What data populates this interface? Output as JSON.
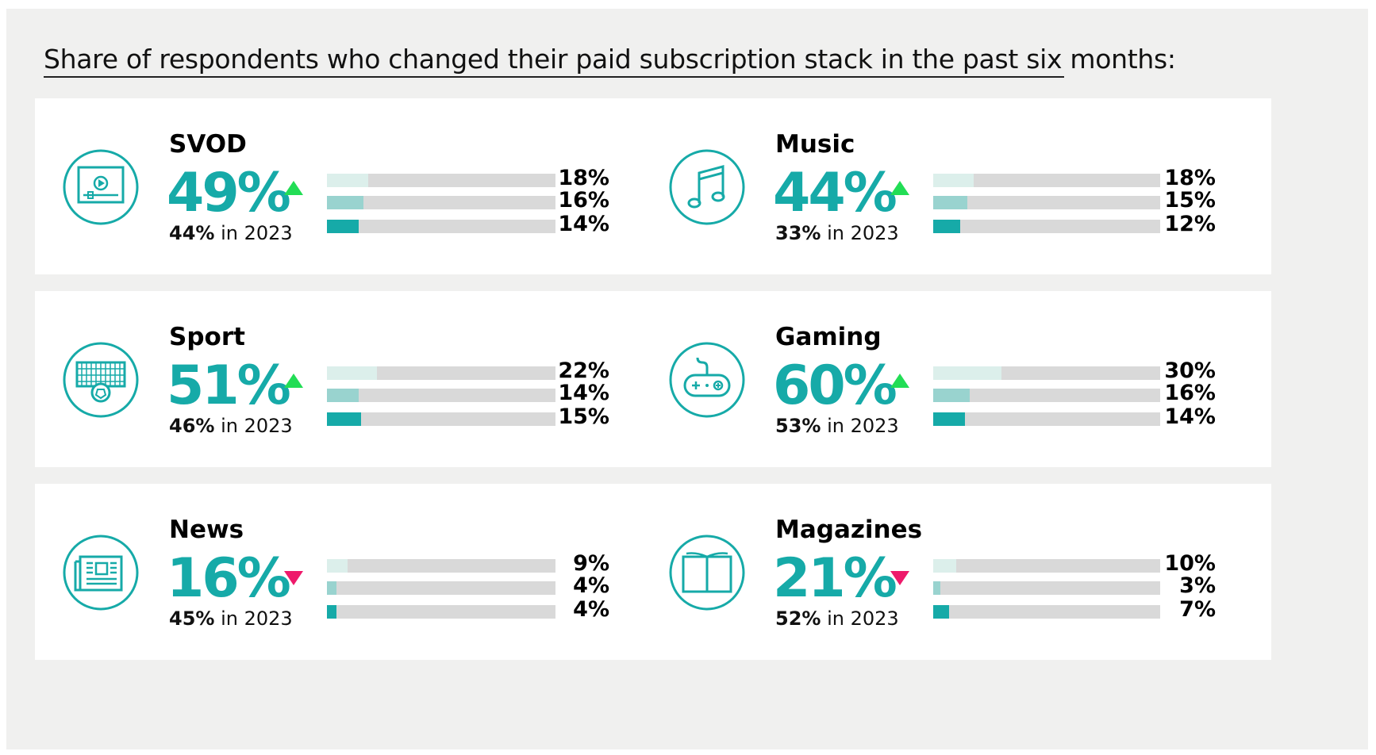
{
  "title": "Share of respondents who changed their paid subscription stack in the past six months:",
  "colors": {
    "accent": "#16aaa8",
    "bar_light": "#dcefeb",
    "bar_mid": "#99d3cf",
    "bar_dark": "#16aaa8",
    "bar_track": "#d9d9d9",
    "up": "#22dd55",
    "down": "#ee1a6b"
  },
  "cards": [
    {
      "category": "SVOD",
      "value": "49%",
      "trend": "up",
      "prev_value": "44%",
      "prev_suffix": " in 2023",
      "icon": "video-player-icon",
      "bars": [
        {
          "label": "18%",
          "value": 18
        },
        {
          "label": "16%",
          "value": 16
        },
        {
          "label": "14%",
          "value": 14
        }
      ]
    },
    {
      "category": "Music",
      "value": "44%",
      "trend": "up",
      "prev_value": "33%",
      "prev_suffix": " in 2023",
      "icon": "music-note-icon",
      "bars": [
        {
          "label": "18%",
          "value": 18
        },
        {
          "label": "15%",
          "value": 15
        },
        {
          "label": "12%",
          "value": 12
        }
      ]
    },
    {
      "category": "Sport",
      "value": "51%",
      "trend": "up",
      "prev_value": "46%",
      "prev_suffix": " in 2023",
      "icon": "soccer-goal-icon",
      "bars": [
        {
          "label": "22%",
          "value": 22
        },
        {
          "label": "14%",
          "value": 14
        },
        {
          "label": "15%",
          "value": 15
        }
      ]
    },
    {
      "category": "Gaming",
      "value": "60%",
      "trend": "up",
      "prev_value": "53%",
      "prev_suffix": " in 2023",
      "icon": "gamepad-icon",
      "bars": [
        {
          "label": "30%",
          "value": 30
        },
        {
          "label": "16%",
          "value": 16
        },
        {
          "label": "14%",
          "value": 14
        }
      ]
    },
    {
      "category": "News",
      "value": "16%",
      "trend": "down",
      "prev_value": "45%",
      "prev_suffix": " in 2023",
      "icon": "newspaper-icon",
      "bars": [
        {
          "label": "9%",
          "value": 9
        },
        {
          "label": "4%",
          "value": 4
        },
        {
          "label": "4%",
          "value": 4
        }
      ]
    },
    {
      "category": "Magazines",
      "value": "21%",
      "trend": "down",
      "prev_value": "52%",
      "prev_suffix": " in 2023",
      "icon": "open-book-icon",
      "bars": [
        {
          "label": "10%",
          "value": 10
        },
        {
          "label": "3%",
          "value": 3
        },
        {
          "label": "7%",
          "value": 7
        }
      ]
    }
  ],
  "chart_data": {
    "type": "bar",
    "title": "Share of respondents who changed their paid subscription stack in the past six months:",
    "categories": [
      "SVOD",
      "Music",
      "Sport",
      "Gaming",
      "News",
      "Magazines"
    ],
    "headline_values": [
      49,
      44,
      51,
      60,
      16,
      21
    ],
    "values_2023": [
      44,
      33,
      46,
      53,
      45,
      52
    ],
    "series": [
      {
        "values": [
          18,
          18,
          22,
          30,
          9,
          10
        ]
      },
      {
        "values": [
          16,
          15,
          14,
          16,
          4,
          3
        ]
      },
      {
        "values": [
          14,
          12,
          15,
          14,
          4,
          7
        ]
      }
    ],
    "xlim": [
      0,
      100
    ]
  }
}
